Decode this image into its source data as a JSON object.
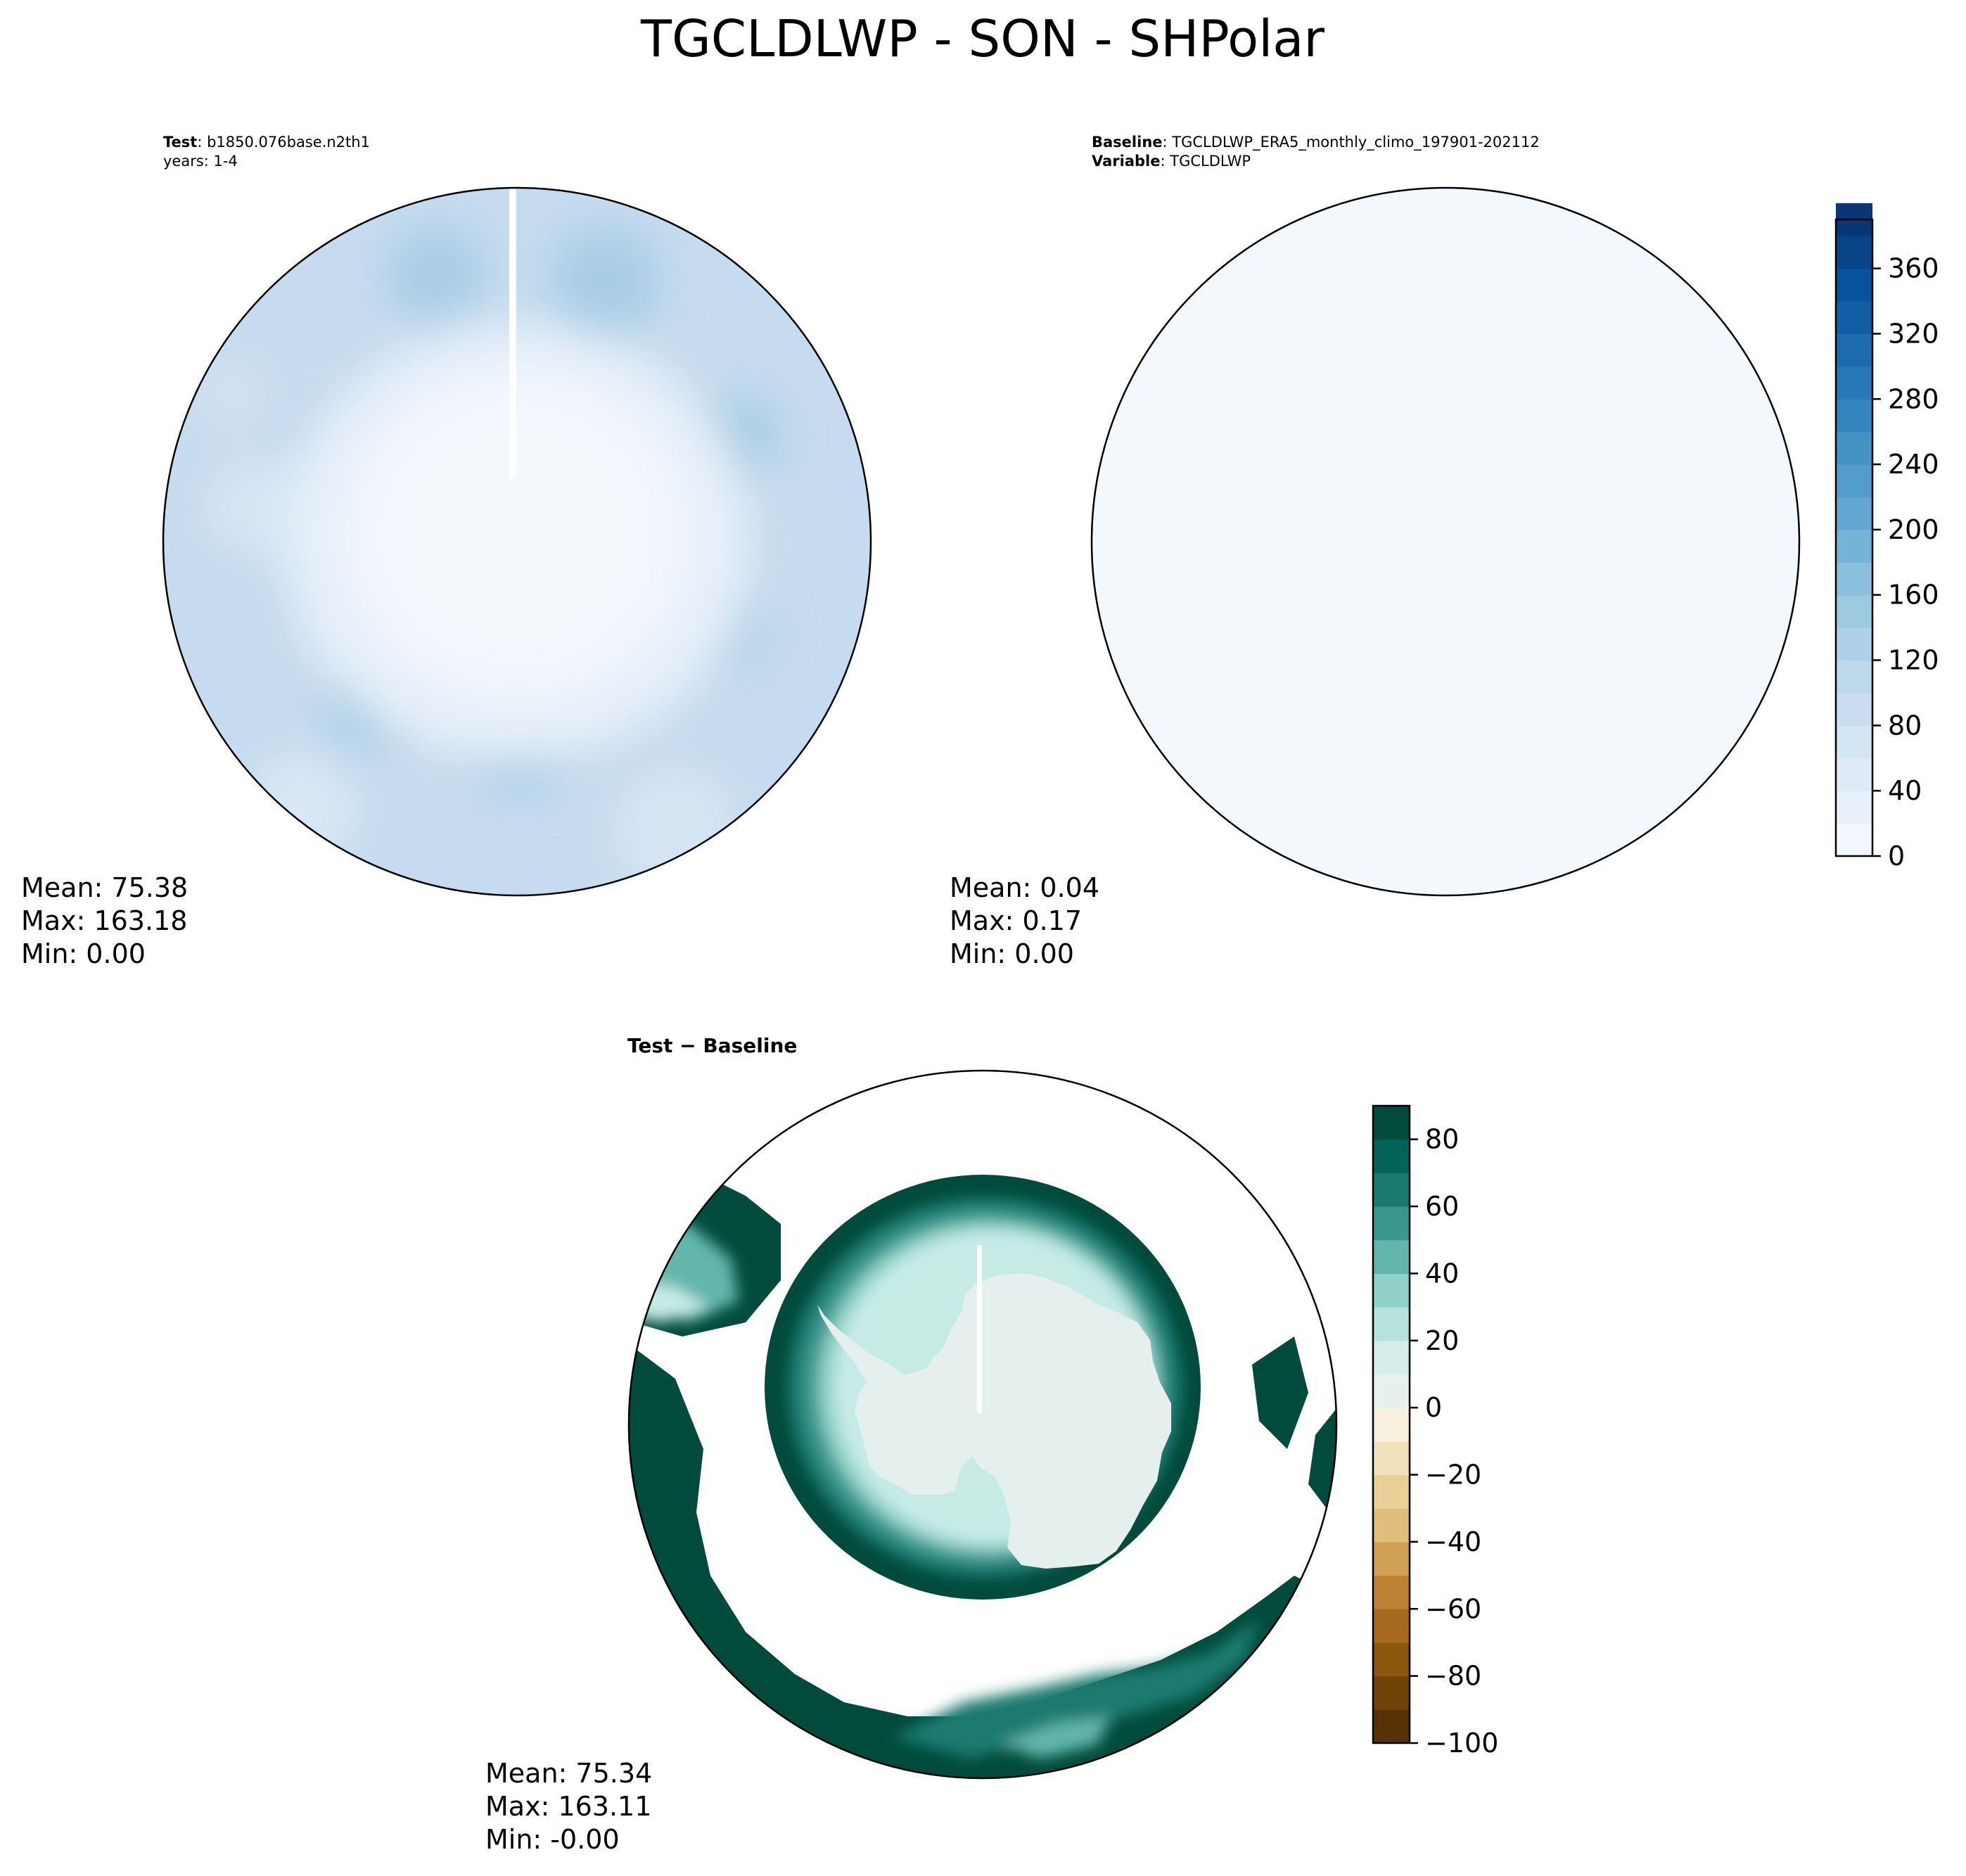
{
  "figure_title": "TGCLDLWP - SON - SHPolar",
  "colors": {
    "land_outline": "#000000",
    "baseline_fill": "#f3f8fd",
    "test_light": "#e1ecf7",
    "test_mid": "#c6dbef",
    "test_dark": "#a9cde4",
    "diff_dark": "#004b3c",
    "diff_mid": "#3a978d",
    "diff_light": "#c6ebe5",
    "diff_zero": "#e5f0ee"
  },
  "panels": {
    "test": {
      "label_bold": "Test",
      "label_text": ": b1850.076base.n2th1",
      "label_line2": "years: 1-4",
      "stats": {
        "mean": "Mean: 75.38",
        "max": "Max: 163.18",
        "min": "Min:  0.00"
      }
    },
    "baseline": {
      "label_bold": "Baseline",
      "label_text": ": TGCLDLWP_ERA5_monthly_climo_197901-202112",
      "label_bold2": "Variable",
      "label_text2": ": TGCLDLWP",
      "stats": {
        "mean": "Mean:  0.04",
        "max": "Max:  0.17",
        "min": "Min:  0.00"
      }
    },
    "difference": {
      "label": "Test − Baseline",
      "stats": {
        "mean": "Mean: 75.34",
        "max": "Max: 163.11",
        "min": "Min: -0.00"
      }
    }
  },
  "chart_data": [
    {
      "type": "colorbar",
      "colormap": "Blues",
      "vmin": 0,
      "vmax": 390,
      "levels_step": 20,
      "ticks": [
        0,
        40,
        80,
        120,
        160,
        200,
        240,
        280,
        320,
        360
      ],
      "tick_labels": [
        "0",
        "40",
        "80",
        "120",
        "160",
        "200",
        "240",
        "280",
        "320",
        "360"
      ]
    },
    {
      "type": "colorbar",
      "colormap": "BrBG",
      "vmin": -100,
      "vmax": 90,
      "levels_step": 10,
      "ticks": [
        -100,
        -80,
        -60,
        -40,
        -20,
        0,
        20,
        40,
        60,
        80
      ],
      "tick_labels": [
        "−100",
        "−80",
        "−60",
        "−40",
        "−20",
        "0",
        "20",
        "40",
        "60",
        "80"
      ],
      "colors": [
        "#573205",
        "#6f4207",
        "#8b560e",
        "#a86a1f",
        "#bf8233",
        "#d0a155",
        "#dfbe7c",
        "#eacf96",
        "#f2e2bb",
        "#f7f0dc",
        "#e6f1ee",
        "#d5eee9",
        "#b5e3db",
        "#8ed1c6",
        "#62b6ac",
        "#3a978d",
        "#1a7a70",
        "#046358",
        "#004b3c"
      ]
    }
  ]
}
